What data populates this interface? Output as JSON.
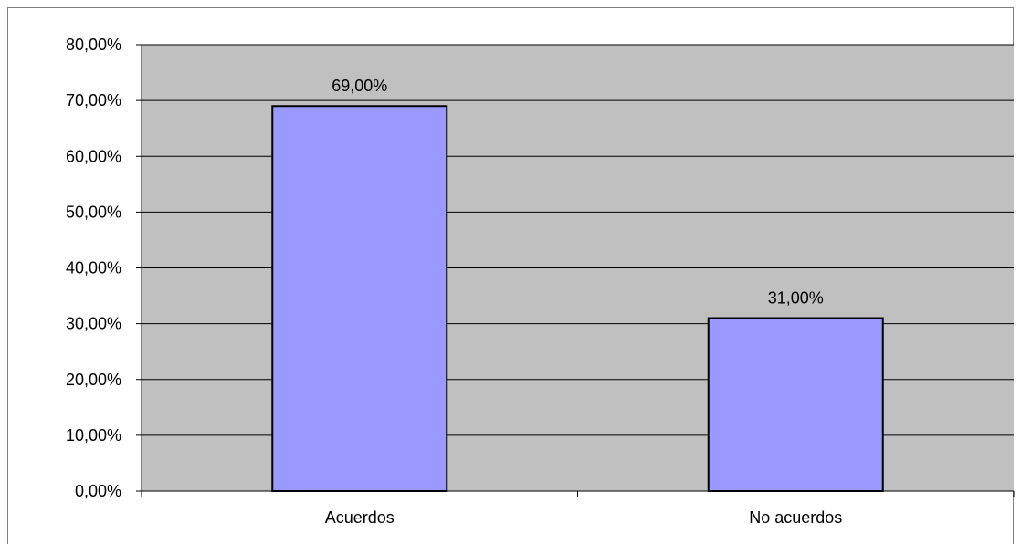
{
  "chart_data": {
    "type": "bar",
    "categories": [
      "Acuerdos",
      "No acuerdos"
    ],
    "values": [
      69.0,
      31.0
    ],
    "value_labels": [
      "69,00%",
      "31,00%"
    ],
    "ylim": [
      0,
      80
    ],
    "yticks": [
      0,
      10,
      20,
      30,
      40,
      50,
      60,
      70,
      80
    ],
    "ytick_labels": [
      "0,00%",
      "10,00%",
      "20,00%",
      "30,00%",
      "40,00%",
      "50,00%",
      "60,00%",
      "70,00%",
      "80,00%"
    ],
    "grid": true,
    "legend": "none",
    "colors": {
      "plot_background": "#c0c0c0",
      "bar_fill": "#9999ff",
      "bar_stroke": "#000000",
      "gridline": "#000000"
    }
  }
}
